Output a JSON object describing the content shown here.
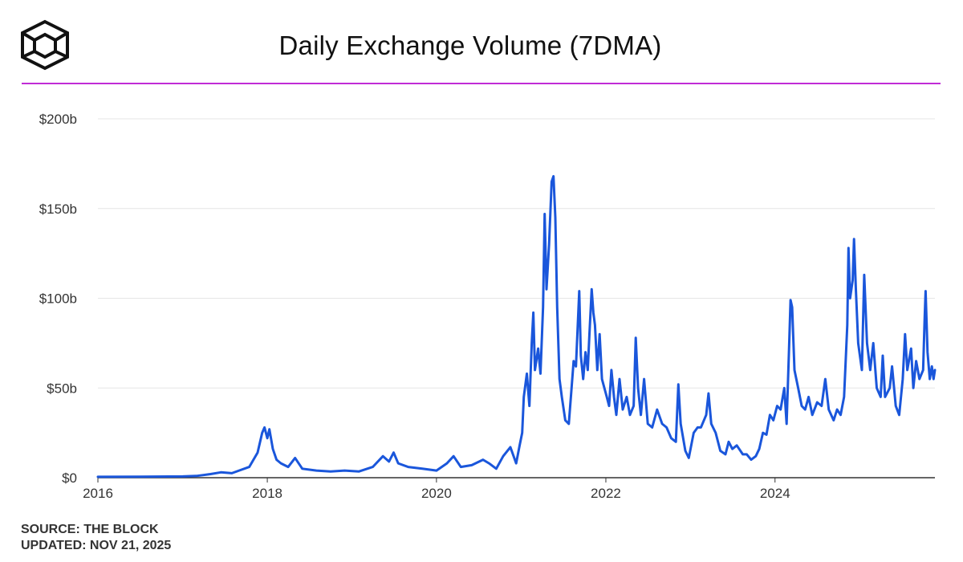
{
  "title": "Daily Exchange Volume (7DMA)",
  "footer": {
    "source": "SOURCE: THE BLOCK",
    "updated": "UPDATED: NOV 21, 2025"
  },
  "colors": {
    "line": "#1a56db",
    "accent_rule": "#c02cd6",
    "grid": "#e6e6e6"
  },
  "chart_data": {
    "type": "line",
    "title": "Daily Exchange Volume (7DMA)",
    "xlabel": "",
    "ylabel": "",
    "x_ticks": [
      "2016",
      "2018",
      "2020",
      "2022",
      "2024"
    ],
    "y_ticks": [
      "$0",
      "$50b",
      "$100b",
      "$150b",
      "$200b"
    ],
    "ylim": [
      0,
      200
    ],
    "xlim": [
      "2016-01-01",
      "2025-11-21"
    ],
    "grid": true,
    "series": [
      {
        "values_unit": "billion USD",
        "points": [
          [
            "2016-01-01",
            0.5
          ],
          [
            "2016-07-01",
            0.6
          ],
          [
            "2017-01-01",
            0.7
          ],
          [
            "2017-03-01",
            1
          ],
          [
            "2017-05-01",
            2
          ],
          [
            "2017-06-15",
            3
          ],
          [
            "2017-08-01",
            2.5
          ],
          [
            "2017-09-01",
            4
          ],
          [
            "2017-10-15",
            6
          ],
          [
            "2017-11-20",
            14
          ],
          [
            "2017-12-10",
            25
          ],
          [
            "2017-12-20",
            28
          ],
          [
            "2018-01-01",
            22
          ],
          [
            "2018-01-10",
            27
          ],
          [
            "2018-01-25",
            16
          ],
          [
            "2018-02-10",
            10
          ],
          [
            "2018-03-01",
            8
          ],
          [
            "2018-04-01",
            6
          ],
          [
            "2018-05-01",
            11
          ],
          [
            "2018-06-01",
            5
          ],
          [
            "2018-08-01",
            4
          ],
          [
            "2018-10-01",
            3.5
          ],
          [
            "2018-12-01",
            4
          ],
          [
            "2019-02-01",
            3.5
          ],
          [
            "2019-04-01",
            6
          ],
          [
            "2019-05-15",
            12
          ],
          [
            "2019-06-10",
            9
          ],
          [
            "2019-06-30",
            14
          ],
          [
            "2019-07-20",
            8
          ],
          [
            "2019-09-01",
            6
          ],
          [
            "2019-11-01",
            5
          ],
          [
            "2020-01-01",
            4
          ],
          [
            "2020-02-15",
            8
          ],
          [
            "2020-03-15",
            12
          ],
          [
            "2020-04-15",
            6
          ],
          [
            "2020-06-01",
            7
          ],
          [
            "2020-07-20",
            10
          ],
          [
            "2020-08-15",
            8
          ],
          [
            "2020-09-15",
            5
          ],
          [
            "2020-10-15",
            12
          ],
          [
            "2020-11-15",
            17
          ],
          [
            "2020-12-10",
            8
          ],
          [
            "2020-12-25",
            18
          ],
          [
            "2021-01-05",
            25
          ],
          [
            "2021-01-12",
            45
          ],
          [
            "2021-01-25",
            58
          ],
          [
            "2021-02-05",
            40
          ],
          [
            "2021-02-15",
            75
          ],
          [
            "2021-02-22",
            92
          ],
          [
            "2021-03-01",
            60
          ],
          [
            "2021-03-15",
            72
          ],
          [
            "2021-03-25",
            58
          ],
          [
            "2021-04-05",
            95
          ],
          [
            "2021-04-12",
            147
          ],
          [
            "2021-04-20",
            105
          ],
          [
            "2021-05-01",
            130
          ],
          [
            "2021-05-12",
            165
          ],
          [
            "2021-05-20",
            168
          ],
          [
            "2021-05-28",
            145
          ],
          [
            "2021-06-05",
            95
          ],
          [
            "2021-06-15",
            55
          ],
          [
            "2021-06-25",
            45
          ],
          [
            "2021-07-10",
            32
          ],
          [
            "2021-07-25",
            30
          ],
          [
            "2021-08-05",
            48
          ],
          [
            "2021-08-15",
            65
          ],
          [
            "2021-08-25",
            62
          ],
          [
            "2021-09-08",
            104
          ],
          [
            "2021-09-15",
            68
          ],
          [
            "2021-09-25",
            55
          ],
          [
            "2021-10-05",
            70
          ],
          [
            "2021-10-15",
            60
          ],
          [
            "2021-10-22",
            80
          ],
          [
            "2021-11-01",
            105
          ],
          [
            "2021-11-08",
            92
          ],
          [
            "2021-11-15",
            85
          ],
          [
            "2021-11-25",
            60
          ],
          [
            "2021-12-05",
            80
          ],
          [
            "2021-12-15",
            55
          ],
          [
            "2022-01-05",
            45
          ],
          [
            "2022-01-15",
            40
          ],
          [
            "2022-01-25",
            60
          ],
          [
            "2022-02-05",
            45
          ],
          [
            "2022-02-15",
            35
          ],
          [
            "2022-03-01",
            55
          ],
          [
            "2022-03-15",
            38
          ],
          [
            "2022-04-01",
            45
          ],
          [
            "2022-04-15",
            35
          ],
          [
            "2022-05-01",
            40
          ],
          [
            "2022-05-10",
            78
          ],
          [
            "2022-05-20",
            50
          ],
          [
            "2022-06-01",
            35
          ],
          [
            "2022-06-15",
            55
          ],
          [
            "2022-07-01",
            30
          ],
          [
            "2022-07-20",
            28
          ],
          [
            "2022-08-10",
            38
          ],
          [
            "2022-09-01",
            30
          ],
          [
            "2022-09-20",
            28
          ],
          [
            "2022-10-10",
            22
          ],
          [
            "2022-10-30",
            20
          ],
          [
            "2022-11-10",
            52
          ],
          [
            "2022-11-20",
            30
          ],
          [
            "2022-12-10",
            15
          ],
          [
            "2022-12-25",
            11
          ],
          [
            "2023-01-15",
            25
          ],
          [
            "2023-02-01",
            28
          ],
          [
            "2023-02-15",
            28
          ],
          [
            "2023-03-10",
            35
          ],
          [
            "2023-03-20",
            47
          ],
          [
            "2023-04-01",
            30
          ],
          [
            "2023-04-20",
            25
          ],
          [
            "2023-05-10",
            15
          ],
          [
            "2023-06-01",
            13
          ],
          [
            "2023-06-15",
            20
          ],
          [
            "2023-07-01",
            16
          ],
          [
            "2023-07-20",
            18
          ],
          [
            "2023-08-15",
            13
          ],
          [
            "2023-09-01",
            13
          ],
          [
            "2023-09-20",
            10
          ],
          [
            "2023-10-10",
            12
          ],
          [
            "2023-10-25",
            16
          ],
          [
            "2023-11-10",
            25
          ],
          [
            "2023-11-25",
            24
          ],
          [
            "2023-12-10",
            35
          ],
          [
            "2023-12-25",
            32
          ],
          [
            "2024-01-10",
            40
          ],
          [
            "2024-01-25",
            38
          ],
          [
            "2024-02-10",
            50
          ],
          [
            "2024-02-20",
            30
          ],
          [
            "2024-03-01",
            70
          ],
          [
            "2024-03-08",
            99
          ],
          [
            "2024-03-15",
            95
          ],
          [
            "2024-03-25",
            60
          ],
          [
            "2024-04-10",
            50
          ],
          [
            "2024-04-25",
            40
          ],
          [
            "2024-05-10",
            38
          ],
          [
            "2024-05-25",
            45
          ],
          [
            "2024-06-10",
            35
          ],
          [
            "2024-07-01",
            42
          ],
          [
            "2024-07-20",
            40
          ],
          [
            "2024-08-05",
            55
          ],
          [
            "2024-08-20",
            38
          ],
          [
            "2024-09-10",
            32
          ],
          [
            "2024-09-25",
            38
          ],
          [
            "2024-10-10",
            35
          ],
          [
            "2024-10-25",
            45
          ],
          [
            "2024-11-08",
            85
          ],
          [
            "2024-11-13",
            128
          ],
          [
            "2024-11-20",
            100
          ],
          [
            "2024-12-01",
            110
          ],
          [
            "2024-12-07",
            133
          ],
          [
            "2024-12-15",
            105
          ],
          [
            "2024-12-25",
            75
          ],
          [
            "2025-01-10",
            60
          ],
          [
            "2025-01-20",
            113
          ],
          [
            "2025-02-01",
            75
          ],
          [
            "2025-02-15",
            60
          ],
          [
            "2025-02-28",
            75
          ],
          [
            "2025-03-15",
            50
          ],
          [
            "2025-04-01",
            45
          ],
          [
            "2025-04-10",
            68
          ],
          [
            "2025-04-20",
            45
          ],
          [
            "2025-05-10",
            50
          ],
          [
            "2025-05-20",
            62
          ],
          [
            "2025-06-05",
            40
          ],
          [
            "2025-06-20",
            35
          ],
          [
            "2025-07-05",
            55
          ],
          [
            "2025-07-15",
            80
          ],
          [
            "2025-07-25",
            60
          ],
          [
            "2025-08-10",
            72
          ],
          [
            "2025-08-20",
            50
          ],
          [
            "2025-09-01",
            65
          ],
          [
            "2025-09-15",
            55
          ],
          [
            "2025-10-01",
            60
          ],
          [
            "2025-10-08",
            90
          ],
          [
            "2025-10-12",
            104
          ],
          [
            "2025-10-20",
            70
          ],
          [
            "2025-10-30",
            55
          ],
          [
            "2025-11-08",
            62
          ],
          [
            "2025-11-15",
            55
          ],
          [
            "2025-11-21",
            60
          ]
        ]
      }
    ]
  }
}
